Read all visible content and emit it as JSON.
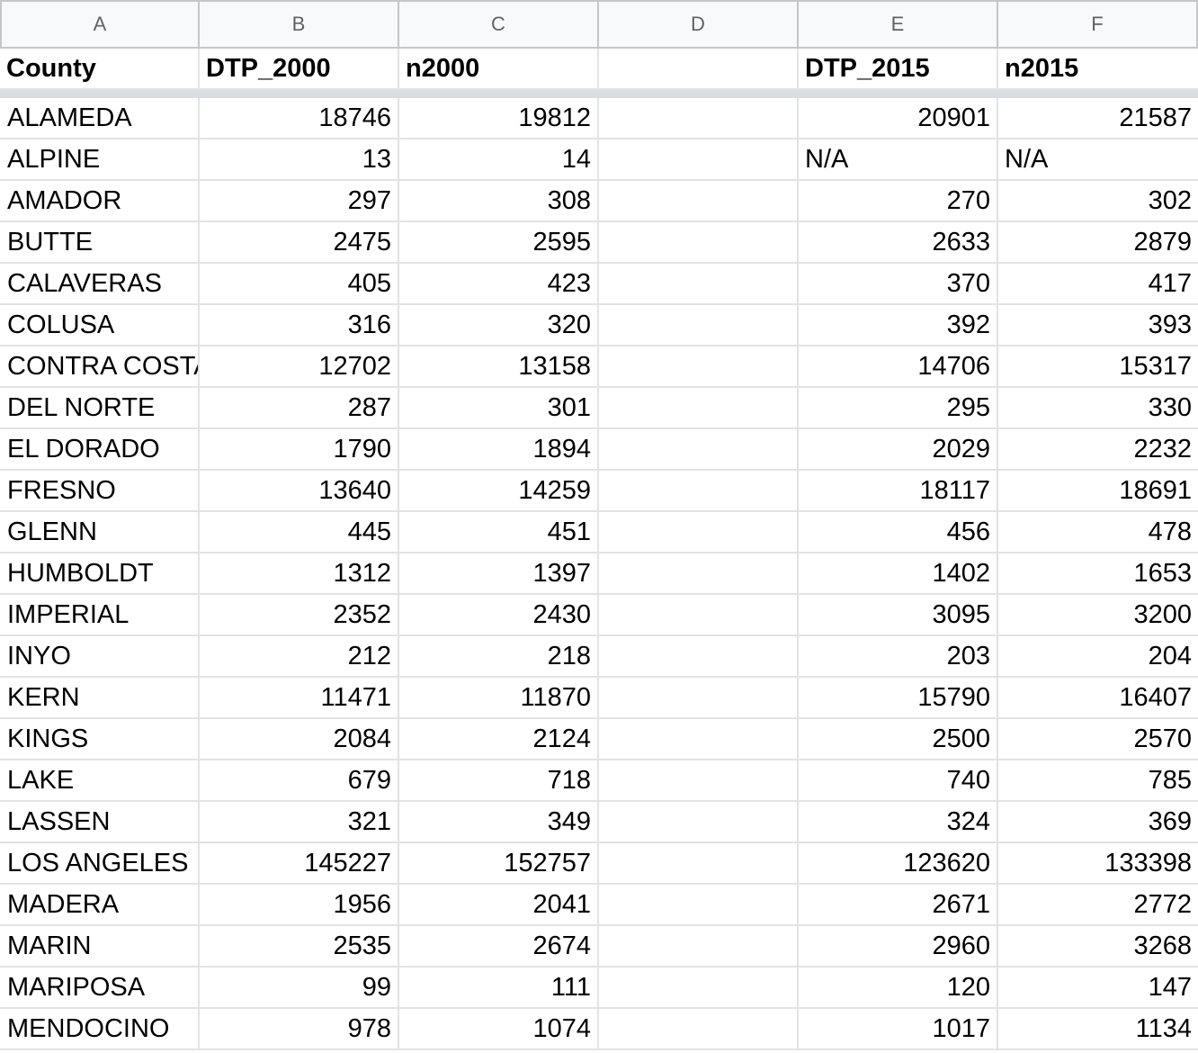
{
  "column_letters": [
    "A",
    "B",
    "C",
    "D",
    "E",
    "F"
  ],
  "headers": [
    "County",
    "DTP_2000",
    "n2000",
    "",
    "DTP_2015",
    "n2015"
  ],
  "rows": [
    [
      "ALAMEDA",
      "18746",
      "19812",
      "",
      "20901",
      "21587"
    ],
    [
      "ALPINE",
      "13",
      "14",
      "",
      "N/A",
      "N/A"
    ],
    [
      "AMADOR",
      "297",
      "308",
      "",
      "270",
      "302"
    ],
    [
      "BUTTE",
      "2475",
      "2595",
      "",
      "2633",
      "2879"
    ],
    [
      "CALAVERAS",
      "405",
      "423",
      "",
      "370",
      "417"
    ],
    [
      "COLUSA",
      "316",
      "320",
      "",
      "392",
      "393"
    ],
    [
      "CONTRA COSTA",
      "12702",
      "13158",
      "",
      "14706",
      "15317"
    ],
    [
      "DEL NORTE",
      "287",
      "301",
      "",
      "295",
      "330"
    ],
    [
      "EL DORADO",
      "1790",
      "1894",
      "",
      "2029",
      "2232"
    ],
    [
      "FRESNO",
      "13640",
      "14259",
      "",
      "18117",
      "18691"
    ],
    [
      "GLENN",
      "445",
      "451",
      "",
      "456",
      "478"
    ],
    [
      "HUMBOLDT",
      "1312",
      "1397",
      "",
      "1402",
      "1653"
    ],
    [
      "IMPERIAL",
      "2352",
      "2430",
      "",
      "3095",
      "3200"
    ],
    [
      "INYO",
      "212",
      "218",
      "",
      "203",
      "204"
    ],
    [
      "KERN",
      "11471",
      "11870",
      "",
      "15790",
      "16407"
    ],
    [
      "KINGS",
      "2084",
      "2124",
      "",
      "2500",
      "2570"
    ],
    [
      "LAKE",
      "679",
      "718",
      "",
      "740",
      "785"
    ],
    [
      "LASSEN",
      "321",
      "349",
      "",
      "324",
      "369"
    ],
    [
      "LOS ANGELES",
      "145227",
      "152757",
      "",
      "123620",
      "133398"
    ],
    [
      "MADERA",
      "1956",
      "2041",
      "",
      "2671",
      "2772"
    ],
    [
      "MARIN",
      "2535",
      "2674",
      "",
      "2960",
      "3268"
    ],
    [
      "MARIPOSA",
      "99",
      "111",
      "",
      "120",
      "147"
    ],
    [
      "MENDOCINO",
      "978",
      "1074",
      "",
      "1017",
      "1134"
    ]
  ]
}
